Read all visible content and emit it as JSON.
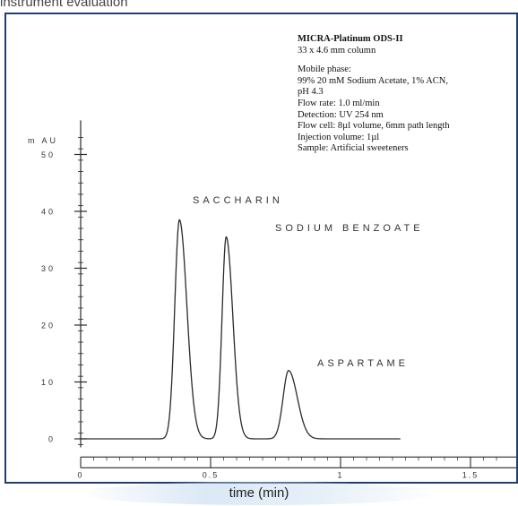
{
  "header_text": "instrument evaluation",
  "info_panel": {
    "column_name": "MICRA-Platinum ODS-II",
    "column_size": "33 x 4.6 mm column",
    "mobile_phase_label": "Mobile phase:",
    "mobile_phase_line1": "99% 20 mM Sodium Acetate, 1% ACN,",
    "mobile_phase_line2": "pH 4.3",
    "flow_rate": "Flow rate: 1.0 ml/min",
    "detection": "Detection: UV 254 nm",
    "flow_cell": "Flow cell: 8µl volume, 6mm path length",
    "injection_volume": "Injection volume: 1µl",
    "sample": "Sample: Artificial sweeteners"
  },
  "chart_data": {
    "type": "line",
    "title": "",
    "xlabel": "time (min)",
    "ylabel": "mAU",
    "xlim": [
      0,
      1.65
    ],
    "ylim": [
      -4,
      56
    ],
    "y_ticks": [
      0,
      10,
      20,
      30,
      40,
      50
    ],
    "y_tick_labels": [
      "0",
      "10",
      "20",
      "30",
      "40",
      "50"
    ],
    "x_ticks": [
      0,
      0.5,
      1,
      1.5
    ],
    "x_tick_labels": [
      "0",
      "0.5",
      "1",
      "1.5"
    ],
    "grid": false,
    "legend": "none",
    "baseline_end": 1.23,
    "series": [
      {
        "peaks": [
          {
            "name": "SACCHARIN",
            "time": 0.38,
            "height": 38.5
          },
          {
            "name": "SODIUM BENZOATE",
            "time": 0.56,
            "height": 35.5
          },
          {
            "name": "ASPARTAME",
            "time": 0.8,
            "height": 12.0
          }
        ]
      }
    ],
    "line_color": "#2a2a2a"
  }
}
